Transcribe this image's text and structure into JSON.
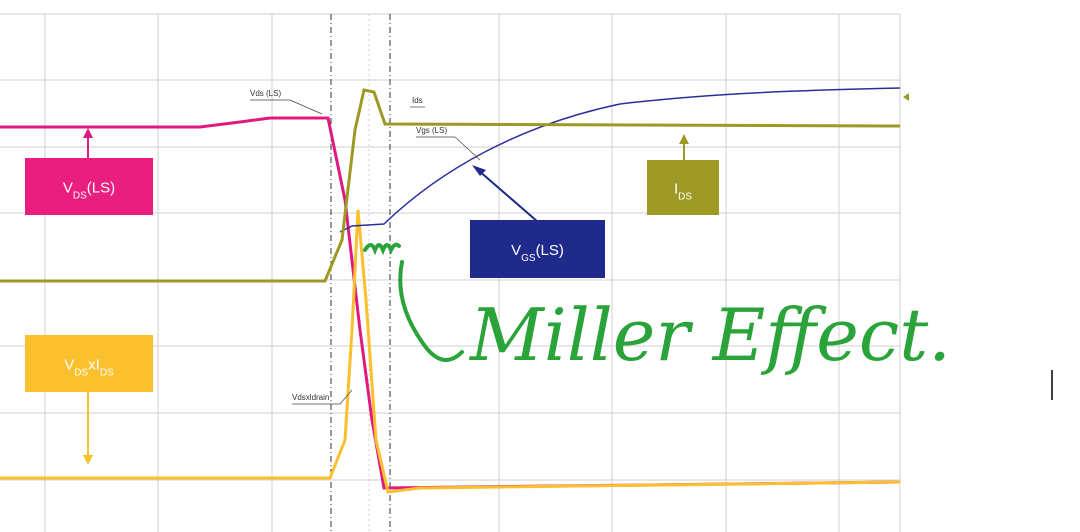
{
  "traces": [
    {
      "label": "Vds (LS)"
    },
    {
      "label": "Ids"
    },
    {
      "label": "Vgs (LS)"
    },
    {
      "label": "Vdsxldrain"
    }
  ],
  "callouts": [
    {
      "parts": [
        {
          "text": "V",
          "sub": false
        },
        {
          "text": "DS",
          "sub": true
        },
        {
          "text": "(LS)",
          "sub": false
        }
      ]
    },
    {
      "parts": [
        {
          "text": "I",
          "sub": false
        },
        {
          "text": "DS",
          "sub": true
        }
      ]
    },
    {
      "parts": [
        {
          "text": "V",
          "sub": false
        },
        {
          "text": "GS",
          "sub": true
        },
        {
          "text": "(LS)",
          "sub": false
        }
      ]
    },
    {
      "parts": [
        {
          "text": "V",
          "sub": false
        },
        {
          "text": "DS",
          "sub": true
        },
        {
          "text": "xI",
          "sub": false
        },
        {
          "text": "DS",
          "sub": true
        }
      ]
    }
  ],
  "annotation": "Miller Effect."
}
